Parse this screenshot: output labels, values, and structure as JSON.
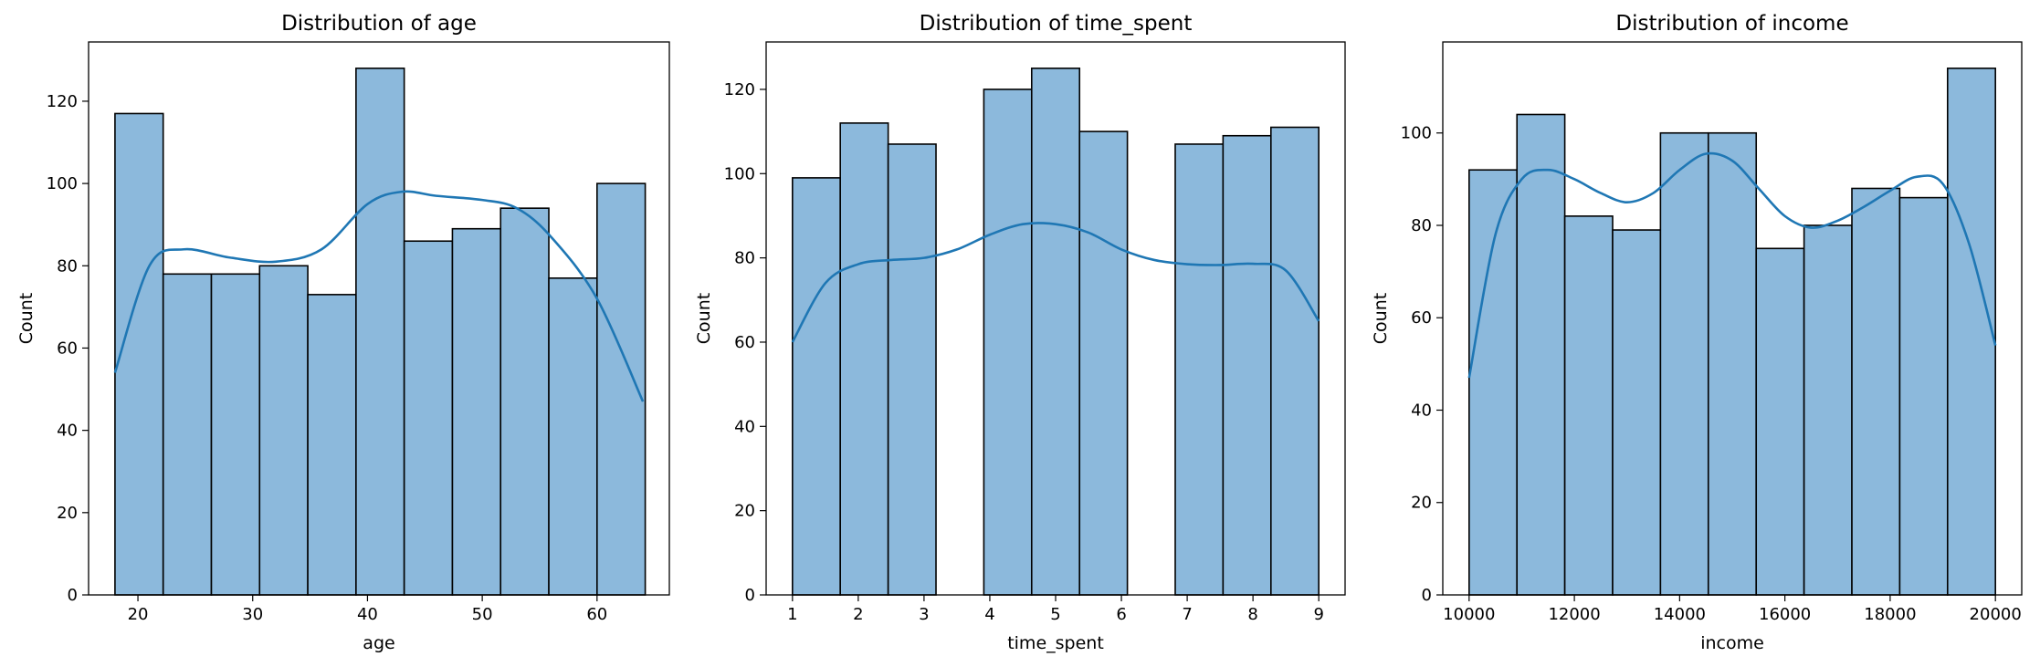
{
  "chart_data": [
    {
      "type": "bar",
      "title": "Distribution of age",
      "xlabel": "age",
      "ylabel": "Count",
      "xlim": [
        15.7,
        66.3
      ],
      "ylim": [
        0,
        134.4
      ],
      "xticks": [
        20,
        30,
        40,
        50,
        60
      ],
      "yticks": [
        0,
        20,
        40,
        60,
        80,
        100,
        120
      ],
      "bin_edges": [
        18,
        22.2,
        26.4,
        30.6,
        34.8,
        39,
        43.2,
        47.4,
        51.6,
        55.8,
        60,
        64.2
      ],
      "counts": [
        117,
        78,
        78,
        80,
        73,
        128,
        86,
        89,
        94,
        77,
        100
      ],
      "kde": {
        "x": [
          18,
          21,
          24,
          28,
          32,
          36,
          40,
          43,
          46,
          50,
          53,
          56,
          60,
          64
        ],
        "y": [
          54,
          80,
          84,
          82,
          81,
          84,
          95,
          98,
          97,
          96,
          94,
          87,
          72,
          47
        ]
      },
      "colors": {
        "bar": "#8cb9dc",
        "edge": "#000000",
        "kde": "#1f77b4"
      }
    },
    {
      "type": "bar",
      "title": "Distribution of time_spent",
      "xlabel": "time_spent",
      "ylabel": "Count",
      "xlim": [
        0.6,
        9.4
      ],
      "ylim": [
        0,
        131.25
      ],
      "xticks": [
        1,
        2,
        3,
        4,
        5,
        6,
        7,
        8,
        9
      ],
      "yticks": [
        0,
        20,
        40,
        60,
        80,
        100,
        120
      ],
      "bin_edges": [
        1,
        1.727,
        2.455,
        3.182,
        3.909,
        4.636,
        5.364,
        6.091,
        6.818,
        7.545,
        8.273,
        9
      ],
      "counts": [
        99,
        112,
        107,
        0,
        120,
        125,
        110,
        0,
        107,
        109,
        111
      ],
      "kde": {
        "x": [
          1,
          1.5,
          2,
          2.5,
          3,
          3.5,
          4,
          4.5,
          5,
          5.5,
          6,
          6.5,
          7,
          7.5,
          8,
          8.5,
          9
        ],
        "y": [
          60,
          74,
          78.5,
          79.5,
          80,
          82,
          85.5,
          88,
          88,
          86,
          82,
          79.5,
          78.5,
          78.3,
          78.6,
          77,
          65
        ]
      },
      "colors": {
        "bar": "#8cb9dc",
        "edge": "#000000",
        "kde": "#1f77b4"
      }
    },
    {
      "type": "bar",
      "title": "Distribution of income",
      "xlabel": "income",
      "ylabel": "Count",
      "xlim": [
        9500,
        20500
      ],
      "ylim": [
        0,
        119.7
      ],
      "xticks": [
        10000,
        12000,
        14000,
        16000,
        18000,
        20000
      ],
      "yticks": [
        0,
        20,
        40,
        60,
        80,
        100
      ],
      "bin_edges": [
        10000,
        10909,
        11818,
        12727,
        13636,
        14545,
        15455,
        16364,
        17273,
        18182,
        19091,
        20000
      ],
      "counts": [
        92,
        104,
        82,
        79,
        100,
        100,
        75,
        80,
        88,
        86,
        114
      ],
      "kde": {
        "x": [
          10000,
          10500,
          11000,
          11500,
          12000,
          12500,
          13000,
          13500,
          14000,
          14500,
          15000,
          15500,
          16000,
          16500,
          17000,
          17500,
          18000,
          18500,
          19000,
          19500,
          20000
        ],
        "y": [
          47,
          78,
          90,
          92,
          90,
          87,
          85,
          87,
          92,
          95.5,
          94,
          88,
          82,
          79.5,
          81,
          84,
          87.5,
          90.5,
          89,
          76,
          54
        ]
      },
      "colors": {
        "bar": "#8cb9dc",
        "edge": "#000000",
        "kde": "#1f77b4"
      }
    }
  ]
}
